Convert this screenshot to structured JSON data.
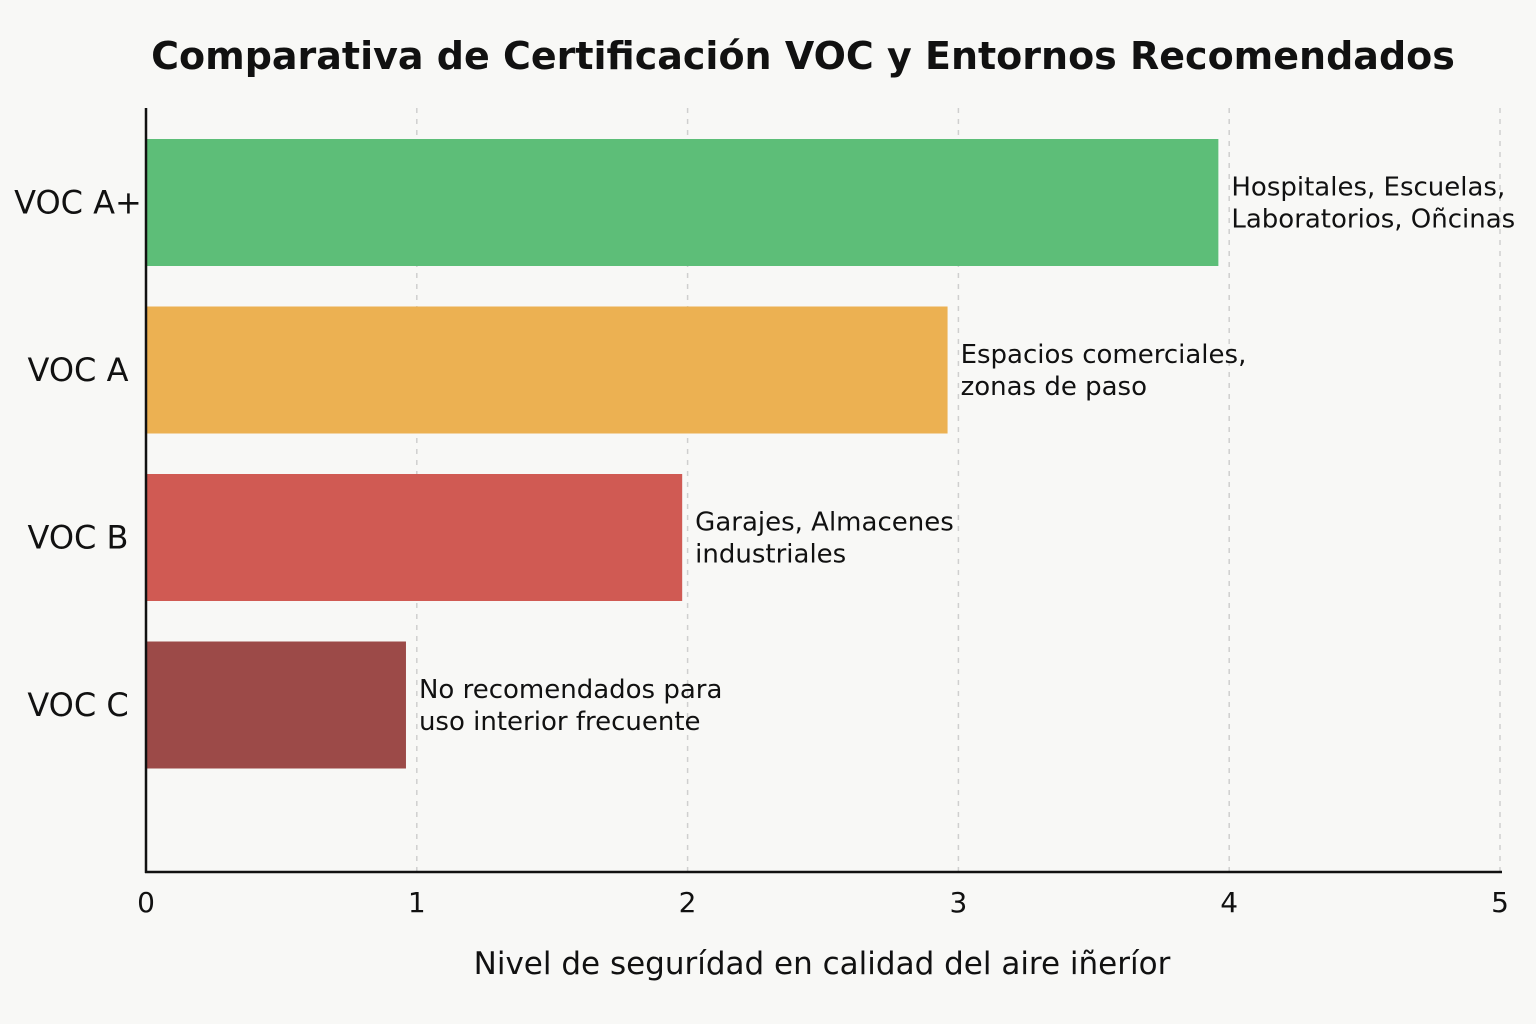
{
  "chart_data": {
    "type": "bar",
    "orientation": "horizontal",
    "title": "Comparativa de Certificación VOC y Entornos Recomendados",
    "xlabel": "Nivel de segurídad en calidad del aire iñeríor",
    "ylabel": "",
    "xlim": [
      0,
      5
    ],
    "xticks": [
      "0",
      "1",
      "2",
      "3",
      "4",
      "5"
    ],
    "grid": "vertical dashed",
    "categories": [
      "VOC A+",
      "VOC A",
      "VOC B",
      "VOC C"
    ],
    "values": [
      3.96,
      2.96,
      1.98,
      0.96
    ],
    "colors": [
      "#5dbe78",
      "#ecb152",
      "#d05a53",
      "#9c4a48"
    ],
    "annotations": [
      [
        "Hospitales, Escuelas,",
        "Laboratorios, Oñcinas"
      ],
      [
        "Espacios comerciales,",
        "zonas de paso"
      ],
      [
        "Garajes, Almacenes",
        "industriales"
      ],
      [
        "No recomendados para",
        "uso interior frecuente"
      ]
    ]
  }
}
